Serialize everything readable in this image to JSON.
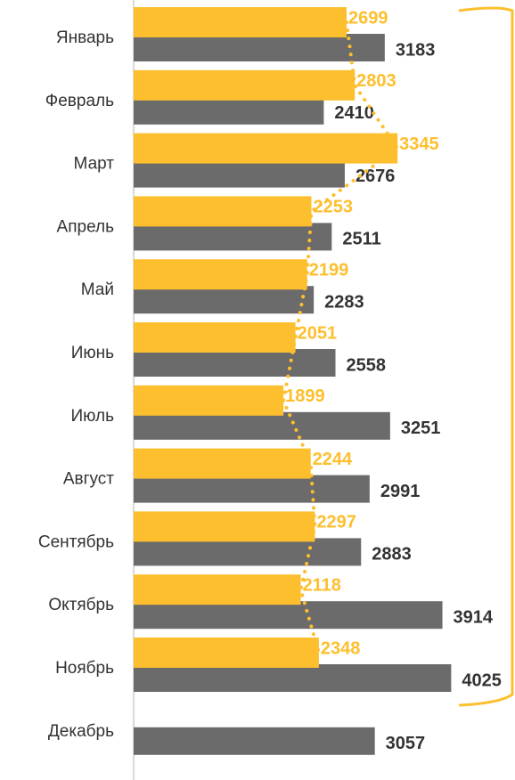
{
  "chart_data": {
    "type": "hbar",
    "categories": [
      "Январь",
      "Февраль",
      "Март",
      "Апрель",
      "Май",
      "Июнь",
      "Июль",
      "Август",
      "Сентябрь",
      "Октябрь",
      "Ноябрь",
      "Декабрь"
    ],
    "series": [
      {
        "color": "#fdbf2d",
        "values": [
          2699,
          2803,
          3345,
          2253,
          2199,
          2051,
          1899,
          2244,
          2297,
          2118,
          2348,
          null
        ]
      },
      {
        "color": "#6b6b6b",
        "values": [
          3183,
          2410,
          2676,
          2511,
          2283,
          2558,
          3251,
          2991,
          2883,
          3914,
          4025,
          3057
        ]
      }
    ],
    "xlim": [
      0,
      4800
    ]
  }
}
